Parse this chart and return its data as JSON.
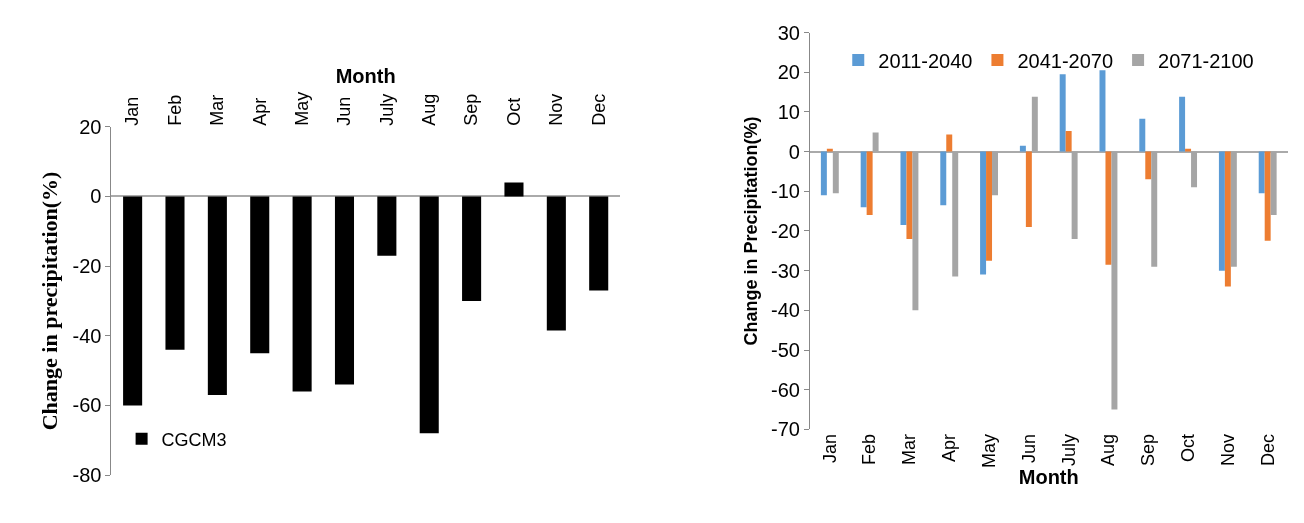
{
  "chart_data": [
    {
      "type": "bar",
      "xlabel": "Month",
      "ylabel": "Change in precipitation(%)",
      "categories": [
        "Jan",
        "Feb",
        "Mar",
        "Apr",
        "May",
        "Jun",
        "July",
        "Aug",
        "Sep",
        "Oct",
        "Nov",
        "Dec"
      ],
      "series": [
        {
          "name": "CGCM3",
          "color": "#000000",
          "values": [
            -60,
            -44,
            -57,
            -45,
            -56,
            -54,
            -17,
            -68,
            -30,
            4,
            -38.5,
            -27
          ]
        }
      ],
      "ylim": [
        -80,
        20
      ],
      "yticks": [
        -80,
        -60,
        -40,
        -20,
        0,
        20
      ],
      "legend": "bottom left"
    },
    {
      "type": "bar",
      "xlabel": "Month",
      "ylabel": "Change in Precipitation(%)",
      "categories": [
        "Jan",
        "Feb",
        "Mar",
        "Apr",
        "May",
        "Jun",
        "July",
        "Aug",
        "Sep",
        "Oct",
        "Nov",
        "Dec"
      ],
      "series": [
        {
          "name": "2011-2040",
          "color": "#5b9bd5",
          "values": [
            -11,
            -14,
            -18.5,
            -13.5,
            -31,
            1.5,
            19.5,
            20.5,
            8.3,
            13.8,
            -30,
            -10.5
          ]
        },
        {
          "name": "2041-2070",
          "color": "#ed7d31",
          "values": [
            0.7,
            -16,
            -22,
            4.3,
            -27.5,
            -19,
            5.2,
            -28.5,
            -7,
            0.7,
            -34,
            -22.5
          ]
        },
        {
          "name": "2071-2100",
          "color": "#a5a5a5",
          "values": [
            -10.5,
            4.8,
            -40,
            -31.5,
            -11,
            13.8,
            -22,
            -65,
            -29,
            -9,
            -29,
            -16
          ]
        }
      ],
      "ylim": [
        -70,
        30
      ],
      "yticks": [
        -70,
        -60,
        -50,
        -40,
        -30,
        -20,
        -10,
        0,
        10,
        20,
        30
      ],
      "legend": "top"
    }
  ]
}
